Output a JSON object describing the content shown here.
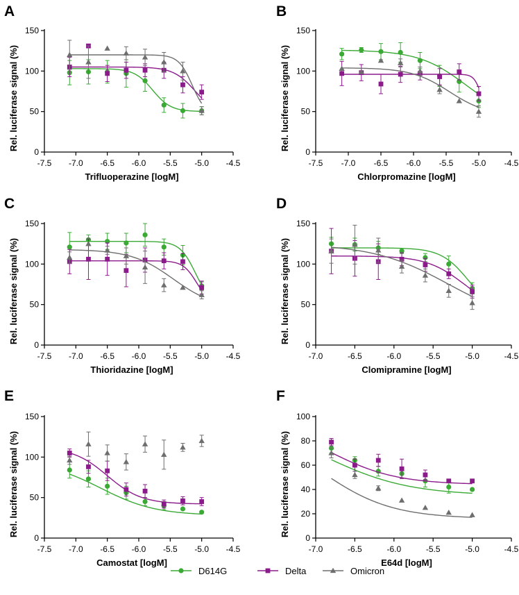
{
  "colors": {
    "D614G": "#3aaa35",
    "Delta": "#8b1a8b",
    "Omicron": "#6e6e6e"
  },
  "legend": [
    {
      "name": "D614G",
      "marker": "circle"
    },
    {
      "name": "Delta",
      "marker": "square"
    },
    {
      "name": "Omicron",
      "marker": "triangle"
    }
  ],
  "chart_data": [
    {
      "panel": "A",
      "type": "scatter",
      "xlabel": "Trifluoperazine [logM]",
      "ylabel": "Rel. luciferase signal (%)",
      "xlim": [
        -7.5,
        -4.5
      ],
      "ylim": [
        0,
        150
      ],
      "xticks": [
        "-7.5",
        "-7.0",
        "-6.5",
        "-6.0",
        "-5.5",
        "-5.0",
        "-4.5"
      ],
      "yticks": [
        "0",
        "50",
        "100",
        "150"
      ],
      "series": [
        {
          "name": "D614G",
          "x": [
            -7.1,
            -6.8,
            -6.5,
            -6.2,
            -5.9,
            -5.6,
            -5.3,
            -5.0
          ],
          "y": [
            98,
            99,
            99,
            97,
            88,
            58,
            51,
            51
          ],
          "err": [
            15,
            15,
            14,
            17,
            13,
            9,
            9,
            5
          ],
          "fit": {
            "top": 103,
            "bottom": 50,
            "logec50": -5.78,
            "hill": 3
          }
        },
        {
          "name": "Delta",
          "x": [
            -7.1,
            -6.8,
            -6.5,
            -6.2,
            -5.9,
            -5.6,
            -5.3,
            -5.0
          ],
          "y": [
            105,
            131,
            97,
            101,
            101,
            101,
            83,
            74
          ],
          "err": [
            12,
            0,
            10,
            10,
            8,
            10,
            10,
            9
          ],
          "fit": {
            "top": 105,
            "bottom": 45,
            "logec50": -5.1,
            "hill": 2.5
          }
        },
        {
          "name": "Omicron",
          "x": [
            -7.1,
            -6.8,
            -6.5,
            -6.2,
            -5.9,
            -5.6,
            -5.3,
            -5.0
          ],
          "y": [
            120,
            111,
            128,
            122,
            117,
            111,
            100,
            51
          ],
          "err": [
            18,
            20,
            0,
            8,
            10,
            12,
            11,
            5
          ],
          "fit": {
            "top": 120,
            "bottom": 45,
            "logec50": -5.15,
            "hill": 4
          }
        }
      ]
    },
    {
      "panel": "B",
      "type": "scatter",
      "xlabel": "Chlorpromazine [logM]",
      "ylabel": "Rel. luciferase signal (%)",
      "xlim": [
        -7.5,
        -4.5
      ],
      "ylim": [
        0,
        150
      ],
      "xticks": [
        "-7.5",
        "-7.0",
        "-6.5",
        "-6.0",
        "-5.5",
        "-5.0",
        "-4.5"
      ],
      "yticks": [
        "0",
        "50",
        "100",
        "150"
      ],
      "series": [
        {
          "name": "D614G",
          "x": [
            -7.1,
            -6.8,
            -6.5,
            -6.2,
            -5.9,
            -5.6,
            -5.3,
            -5.0
          ],
          "y": [
            121,
            126,
            124,
            123,
            113,
            94,
            87,
            63
          ],
          "err": [
            7,
            3,
            10,
            12,
            10,
            13,
            13,
            8
          ],
          "fit": {
            "top": 126,
            "bottom": 40,
            "logec50": -5.2,
            "hill": 1.2
          }
        },
        {
          "name": "Delta",
          "x": [
            -7.1,
            -6.8,
            -6.5,
            -6.2,
            -5.9,
            -5.6,
            -5.3,
            -5.0
          ],
          "y": [
            97,
            98,
            84,
            96,
            97,
            93,
            99,
            72
          ],
          "err": [
            15,
            10,
            12,
            10,
            8,
            10,
            10,
            9
          ],
          "fit": {
            "top": 96,
            "bottom": 50,
            "logec50": -4.97,
            "hill": 8
          }
        },
        {
          "name": "Omicron",
          "x": [
            -7.1,
            -6.8,
            -6.5,
            -6.2,
            -5.9,
            -5.6,
            -5.3,
            -5.0
          ],
          "y": [
            103,
            99,
            113,
            110,
            100,
            77,
            63,
            50
          ],
          "err": [
            0,
            0,
            0,
            5,
            5,
            5,
            0,
            7
          ],
          "fit": {
            "top": 104,
            "bottom": 45,
            "logec50": -5.45,
            "hill": 1.5
          }
        }
      ]
    },
    {
      "panel": "C",
      "type": "scatter",
      "xlabel": "Thioridazine [logM]",
      "ylabel": "Rel. luciferase signal (%)",
      "xlim": [
        -7.5,
        -4.5
      ],
      "ylim": [
        0,
        150
      ],
      "xticks": [
        "-7.5",
        "-7.0",
        "-6.5",
        "-6.0",
        "-5.5",
        "-5.0",
        "-4.5"
      ],
      "yticks": [
        "0",
        "50",
        "100",
        "150"
      ],
      "series": [
        {
          "name": "D614G",
          "x": [
            -7.1,
            -6.8,
            -6.5,
            -6.2,
            -5.9,
            -5.6,
            -5.3,
            -5.0
          ],
          "y": [
            121,
            130,
            128,
            126,
            136,
            121,
            111,
            73
          ],
          "err": [
            18,
            6,
            10,
            12,
            14,
            10,
            12,
            5
          ],
          "fit": {
            "top": 128,
            "bottom": 50,
            "logec50": -5.1,
            "hill": 3.5
          }
        },
        {
          "name": "Delta",
          "x": [
            -7.1,
            -6.8,
            -6.5,
            -6.2,
            -5.9,
            -5.6,
            -5.3,
            -5.0
          ],
          "y": [
            103,
            106,
            106,
            92,
            105,
            104,
            103,
            71
          ],
          "err": [
            15,
            25,
            20,
            20,
            15,
            10,
            10,
            8
          ],
          "fit": {
            "top": 104,
            "bottom": 50,
            "logec50": -5.08,
            "hill": 4
          }
        },
        {
          "name": "Omicron",
          "x": [
            -7.1,
            -6.8,
            -6.5,
            -6.2,
            -5.9,
            -5.6,
            -5.3,
            -5.0
          ],
          "y": [
            108,
            125,
            117,
            110,
            96,
            74,
            71,
            62
          ],
          "err": [
            7,
            0,
            5,
            10,
            20,
            8,
            0,
            5
          ],
          "fit": {
            "top": 118,
            "bottom": 45,
            "logec50": -5.45,
            "hill": 1.3
          }
        }
      ]
    },
    {
      "panel": "D",
      "type": "scatter",
      "xlabel": "Clomipramine [logM]",
      "ylabel": "Rel. luciferase signal (%)",
      "xlim": [
        -7.0,
        -4.5
      ],
      "ylim": [
        0,
        150
      ],
      "xticks": [
        "-7.0",
        "-6.5",
        "-6.0",
        "-5.5",
        "-5.0",
        "-4.5"
      ],
      "yticks": [
        "0",
        "50",
        "100",
        "150"
      ],
      "series": [
        {
          "name": "D614G",
          "x": [
            -6.8,
            -6.5,
            -6.2,
            -5.9,
            -5.6,
            -5.3,
            -5.0
          ],
          "y": [
            125,
            124,
            120,
            116,
            108,
            100,
            70
          ],
          "err": [
            8,
            8,
            8,
            3,
            5,
            10,
            7
          ],
          "fit": {
            "top": 120,
            "bottom": 40,
            "logec50": -5.05,
            "hill": 2.5
          }
        },
        {
          "name": "Delta",
          "x": [
            -6.8,
            -6.5,
            -6.2,
            -5.9,
            -5.6,
            -5.3,
            -5.0
          ],
          "y": [
            116,
            107,
            103,
            106,
            99,
            88,
            66
          ],
          "err": [
            28,
            22,
            22,
            8,
            8,
            6,
            8
          ],
          "fit": {
            "top": 110,
            "bottom": 40,
            "logec50": -5.1,
            "hill": 1.8
          }
        },
        {
          "name": "Omicron",
          "x": [
            -6.8,
            -6.5,
            -6.2,
            -5.9,
            -5.6,
            -5.3,
            -5.0
          ],
          "y": [
            116,
            124,
            117,
            97,
            86,
            67,
            52
          ],
          "err": [
            15,
            24,
            15,
            8,
            8,
            8,
            8
          ],
          "fit": {
            "top": 125,
            "bottom": 25,
            "logec50": -5.3,
            "hill": 0.9
          }
        }
      ]
    },
    {
      "panel": "E",
      "type": "scatter",
      "xlabel": "Camostat [logM]",
      "ylabel": "Rel. luciferase signal (%)",
      "xlim": [
        -7.5,
        -4.5
      ],
      "ylim": [
        0,
        150
      ],
      "xticks": [
        "-7.5",
        "-7.0",
        "-6.5",
        "-6.0",
        "-5.5",
        "-5.0",
        "-4.5"
      ],
      "yticks": [
        "0",
        "50",
        "100",
        "150"
      ],
      "series": [
        {
          "name": "D614G",
          "x": [
            -7.1,
            -6.8,
            -6.5,
            -6.2,
            -5.9,
            -5.6,
            -5.3,
            -5.0
          ],
          "y": [
            84,
            73,
            64,
            56,
            45,
            40,
            36,
            32
          ],
          "err": [
            10,
            10,
            10,
            8,
            5,
            5,
            0,
            0
          ],
          "fit": {
            "top": 95,
            "bottom": 28,
            "logec50": -6.6,
            "hill": 1.0
          }
        },
        {
          "name": "Delta",
          "x": [
            -7.1,
            -6.8,
            -6.5,
            -6.2,
            -5.9,
            -5.6,
            -5.3,
            -5.0
          ],
          "y": [
            105,
            88,
            83,
            60,
            58,
            42,
            46,
            45
          ],
          "err": [
            5,
            8,
            12,
            8,
            8,
            5,
            5,
            5
          ],
          "fit": {
            "top": 112,
            "bottom": 42,
            "logec50": -6.5,
            "hill": 1.6
          }
        },
        {
          "name": "Omicron",
          "x": [
            -7.1,
            -6.8,
            -6.5,
            -6.2,
            -5.9,
            -5.6,
            -5.3,
            -5.0
          ],
          "y": [
            96,
            116,
            105,
            94,
            116,
            103,
            112,
            120
          ],
          "err": [
            5,
            15,
            10,
            10,
            10,
            18,
            5,
            7
          ]
        }
      ]
    },
    {
      "panel": "F",
      "type": "scatter",
      "xlabel": "E64d [logM]",
      "ylabel": "Rel. luciferase signal (%)",
      "xlim": [
        -7.0,
        -4.5
      ],
      "ylim": [
        0,
        100
      ],
      "xticks": [
        "-7.0",
        "-6.5",
        "-6.0",
        "-5.5",
        "-5.0",
        "-4.5"
      ],
      "yticks": [
        "0",
        "20",
        "40",
        "60",
        "80",
        "100"
      ],
      "series": [
        {
          "name": "D614G",
          "x": [
            -6.8,
            -6.5,
            -6.2,
            -5.9,
            -5.6,
            -5.3,
            -5.0
          ],
          "y": [
            74,
            64,
            55,
            53,
            47,
            42,
            40
          ],
          "err": [
            4,
            3,
            4,
            4,
            5,
            5,
            0
          ],
          "fit": {
            "top": 100,
            "bottom": 35,
            "logec50": -6.9,
            "hill": 0.8
          }
        },
        {
          "name": "Delta",
          "x": [
            -6.8,
            -6.5,
            -6.2,
            -5.9,
            -5.6,
            -5.3,
            -5.0
          ],
          "y": [
            79,
            60,
            64,
            57,
            52,
            47,
            47
          ],
          "err": [
            3,
            5,
            5,
            8,
            4,
            0,
            0
          ],
          "fit": {
            "top": 100,
            "bottom": 44,
            "logec50": -6.85,
            "hill": 1.0
          }
        },
        {
          "name": "Omicron",
          "x": [
            -6.8,
            -6.5,
            -6.2,
            -5.9,
            -5.6,
            -5.3,
            -5.0
          ],
          "y": [
            70,
            52,
            41,
            31,
            25,
            21,
            19
          ],
          "err": [
            4,
            3,
            2,
            0,
            0,
            0,
            0
          ],
          "fit": {
            "top": 95,
            "bottom": 16,
            "logec50": -6.95,
            "hill": 0.95
          }
        }
      ]
    }
  ]
}
